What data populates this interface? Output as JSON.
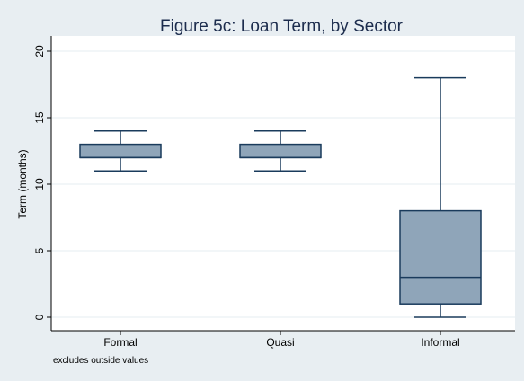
{
  "chart_data": {
    "type": "box",
    "title": "Figure 5c: Loan Term, by Sector",
    "ylabel": "Term (months)",
    "xlabel": "",
    "note": "excludes outside values",
    "ylim": [
      0,
      20
    ],
    "yticks": [
      0,
      5,
      10,
      15,
      20
    ],
    "grid": true,
    "categories": [
      "Formal",
      "Quasi",
      "Informal"
    ],
    "boxes": [
      {
        "category": "Formal",
        "whisker_low": 11,
        "q1": 12,
        "median": 12,
        "q3": 13,
        "whisker_high": 14
      },
      {
        "category": "Quasi",
        "whisker_low": 11,
        "q1": 12,
        "median": 12,
        "q3": 13,
        "whisker_high": 14
      },
      {
        "category": "Informal",
        "whisker_low": 0,
        "q1": 1,
        "median": 3,
        "q3": 8,
        "whisker_high": 18
      }
    ]
  },
  "colors": {
    "background": "#e8eef2",
    "plot_background": "#ffffff",
    "box_fill": "#8fa5b9",
    "box_stroke": "#1a3b5c",
    "grid": "#e6ecf0",
    "title": "#1c2c4d",
    "axis": "#000000"
  }
}
